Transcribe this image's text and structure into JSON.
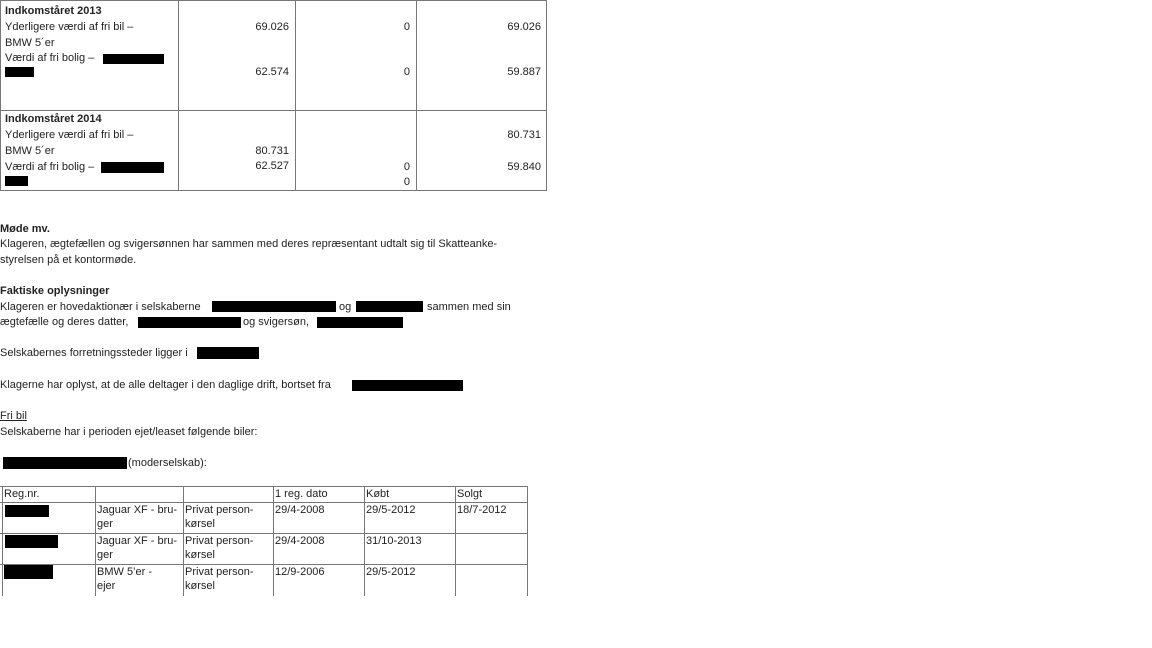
{
  "income_table": {
    "rows": [
      {
        "title": "Indkomståret 2013",
        "lines": [
          "Yderligere værdi af fri bil –",
          "BMW 5´er",
          "Værdi af fri bolig –"
        ],
        "values": [
          [
            "69.026",
            "0",
            "69.026"
          ],
          [
            "62.574",
            "0",
            "59.887"
          ]
        ]
      },
      {
        "title": "Indkomståret 2014",
        "lines": [
          "Yderligere værdi af fri bil –",
          "BMW 5´er",
          "Værdi af fri bolig –"
        ],
        "values": {
          "c3a": "80.731",
          "c1a": "80.731",
          "c1b": "62.527",
          "c2a": "0",
          "c2b": "0",
          "c3b": "59.840"
        }
      }
    ]
  },
  "sections": {
    "meeting_heading": "Møde mv.",
    "meeting_l1": "Klageren, ægtefællen og svigersønnen har sammen med deres repræsentant udtalt sig til Skatteanke-",
    "meeting_l2": "styrelsen på et kontormøde.",
    "facts_heading": "Faktiske oplysninger",
    "facts_l1a": "Klageren er hovedaktionær i selskaberne",
    "facts_l1b": "og",
    "facts_l1c": "sammen med sin",
    "facts_l2a": "ægtefælle og deres datter,",
    "facts_l2b": "og svigersøn,",
    "location": "Selskabernes forretningssteder ligger i",
    "daily": "Klagerne har oplyst, at de alle deltager i den daglige drift, bortset fra",
    "car_heading": "Fri bil",
    "car_intro": "Selskaberne har i perioden ejet/leaset følgende biler:",
    "parent": "(moderselskab):"
  },
  "car_table": {
    "headers": [
      "Reg.nr.",
      "",
      "",
      "1 reg. dato",
      "Købt",
      "Solgt"
    ],
    "rows": [
      {
        "model": [
          "Jaguar XF - bru-",
          "ger"
        ],
        "use": [
          "Privat person-",
          "kørsel"
        ],
        "reg": "29/4-2008",
        "bought": "29/5-2012",
        "sold": "18/7-2012"
      },
      {
        "model": [
          "Jaguar XF - bru-",
          "ger"
        ],
        "use": [
          "Privat person-",
          "kørsel"
        ],
        "reg": "29/4-2008",
        "bought": "31/10-2013",
        "sold": ""
      },
      {
        "model": [
          "BMW 5’er -",
          "ejer"
        ],
        "use": [
          "Privat person-",
          "kørsel"
        ],
        "reg": "12/9-2006",
        "bought": "29/5-2012",
        "sold": ""
      }
    ]
  }
}
